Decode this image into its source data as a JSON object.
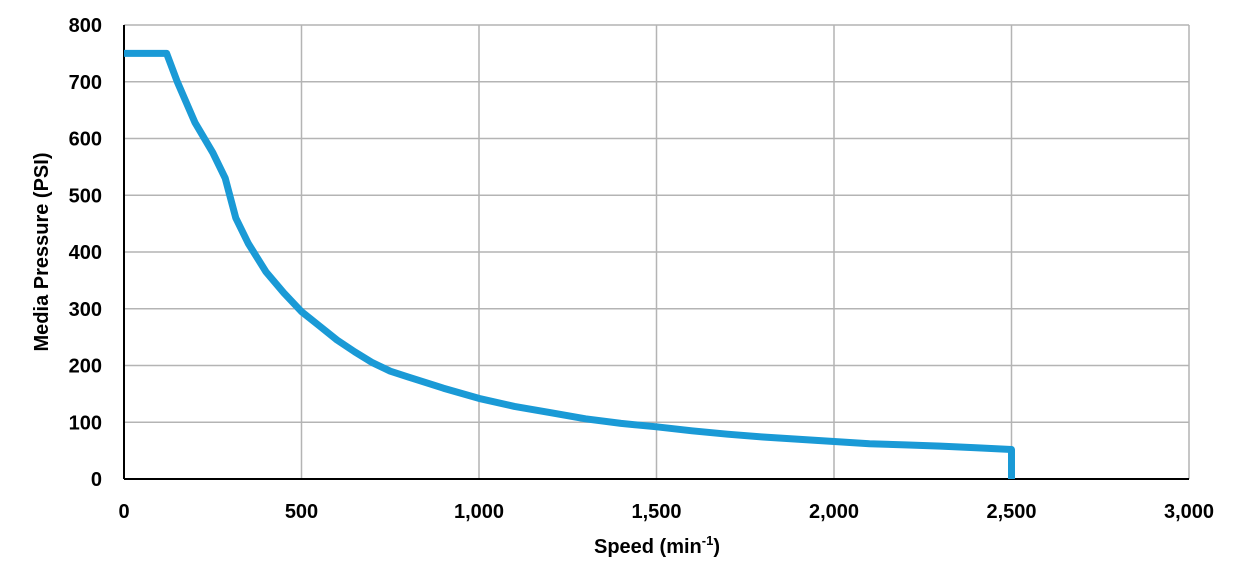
{
  "chart_data": {
    "type": "line",
    "title": "",
    "xlabel_main": "Speed (min",
    "xlabel_sup": "-1",
    "xlabel_end": ")",
    "ylabel": "Media Pressure (PSI)",
    "xlim": [
      0,
      3000
    ],
    "ylim": [
      0,
      800
    ],
    "x_ticks": [
      0,
      500,
      1000,
      1500,
      2000,
      2500,
      3000
    ],
    "x_tick_labels": [
      "0",
      "500",
      "1,000",
      "1,500",
      "2,000",
      "2,500",
      "3,000"
    ],
    "y_ticks": [
      0,
      100,
      200,
      300,
      400,
      500,
      600,
      700,
      800
    ],
    "y_tick_labels": [
      "0",
      "100",
      "200",
      "300",
      "400",
      "500",
      "600",
      "700",
      "800"
    ],
    "grid": true,
    "legend": "none",
    "series": [
      {
        "color": "#1a9ad6",
        "x": [
          0,
          120,
          150,
          200,
          250,
          285,
          315,
          350,
          400,
          450,
          500,
          550,
          600,
          650,
          700,
          750,
          800,
          900,
          1000,
          1100,
          1200,
          1300,
          1400,
          1500,
          1600,
          1700,
          1800,
          1900,
          2000,
          2100,
          2200,
          2300,
          2400,
          2500,
          2500
        ],
        "y": [
          750,
          750,
          700,
          628,
          575,
          530,
          460,
          415,
          365,
          328,
          295,
          270,
          245,
          224,
          205,
          190,
          180,
          160,
          142,
          128,
          117,
          106,
          98,
          92,
          85,
          79,
          74,
          70,
          66,
          62,
          60,
          58,
          55,
          52,
          0
        ]
      }
    ]
  }
}
